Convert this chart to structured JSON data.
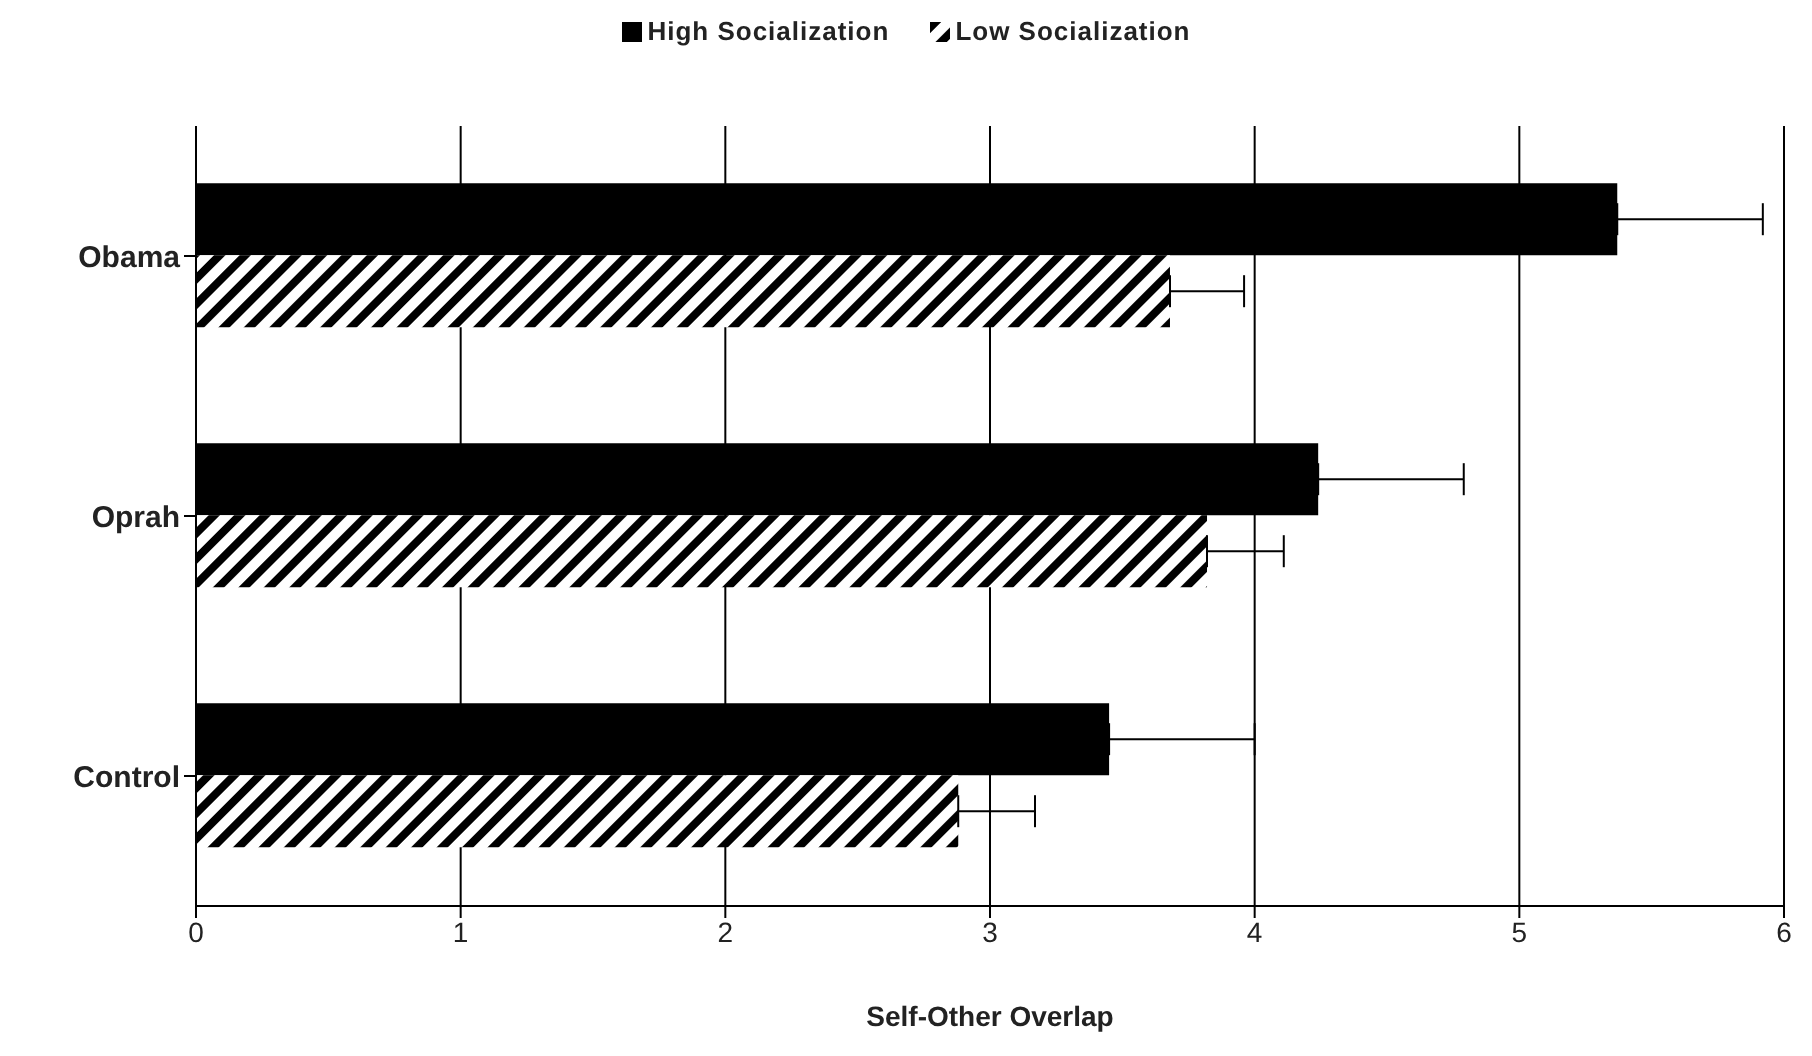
{
  "chart_data": {
    "type": "bar",
    "orientation": "horizontal",
    "xlabel": "Self-Other Overlap",
    "categories": [
      "Obama",
      "Oprah",
      "Control"
    ],
    "series": [
      {
        "name": "High Socialization",
        "color": "#000000",
        "values": [
          5.37,
          4.24,
          3.45
        ],
        "errors": [
          [
            5.37,
            5.92
          ],
          [
            4.24,
            4.79
          ],
          [
            3.45,
            4.0
          ]
        ]
      },
      {
        "name": "Low Socialization",
        "color": "#000000",
        "values": [
          3.68,
          3.82,
          2.88
        ],
        "errors": [
          [
            3.68,
            3.96
          ],
          [
            3.82,
            4.11
          ],
          [
            2.88,
            3.17
          ]
        ]
      }
    ],
    "xlim": [
      0,
      6
    ],
    "xticks": [
      0,
      1,
      2,
      3,
      4,
      5,
      6
    ],
    "grid": "x",
    "legend": "top"
  }
}
